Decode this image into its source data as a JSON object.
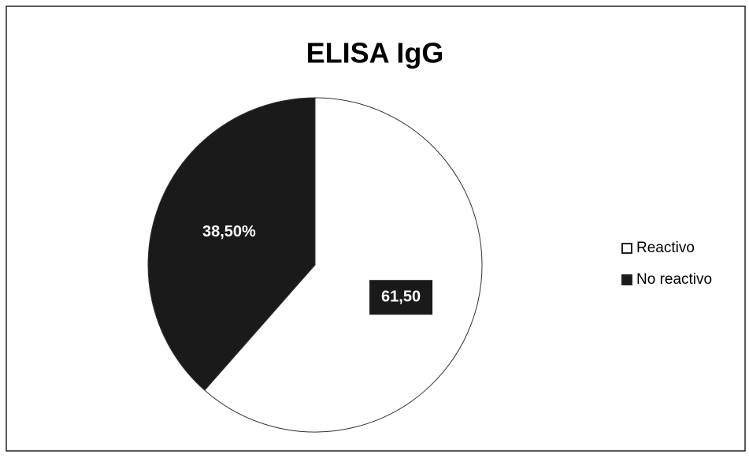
{
  "chart_data": {
    "type": "pie",
    "title": "ELISA IgG",
    "categories": [
      "Reactivo",
      "No reactivo"
    ],
    "values": [
      61.5,
      38.5
    ],
    "value_labels": [
      "61,50",
      "38,50%"
    ],
    "colors": [
      "#ffffff",
      "#1a1a1a"
    ],
    "legend": "right"
  }
}
